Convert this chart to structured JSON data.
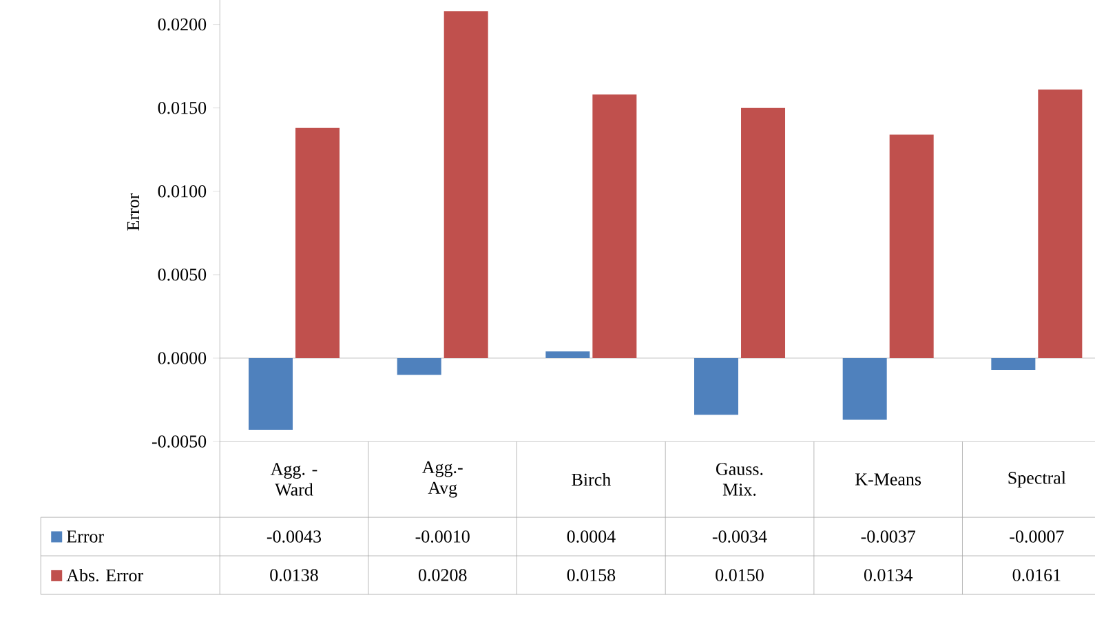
{
  "chart_data": {
    "type": "bar",
    "ylabel": "Error",
    "categories": [
      "Agg. -\nWard",
      "Agg.-\nAvg",
      "Birch",
      "Gauss.\nMix.",
      "K-Means",
      "Spectral"
    ],
    "series": [
      {
        "name": "Error",
        "color": "#4f81bd",
        "values": [
          -0.0043,
          -0.001,
          0.0004,
          -0.0034,
          -0.0037,
          -0.0007
        ],
        "value_labels": [
          "-0.0043",
          "-0.0010",
          "0.0004",
          "-0.0034",
          "-0.0037",
          "-0.0007"
        ]
      },
      {
        "name": "Abs. Error",
        "color": "#c0504d",
        "values": [
          0.0138,
          0.0208,
          0.0158,
          0.015,
          0.0134,
          0.0161
        ],
        "value_labels": [
          "0.0138",
          "0.0208",
          "0.0158",
          "0.0150",
          "0.0134",
          "0.0161"
        ]
      }
    ],
    "ylim": [
      -0.005,
      0.0225
    ],
    "yticks": [
      {
        "value": -0.005,
        "label": "-0.0050"
      },
      {
        "value": 0,
        "label": "0.0000"
      },
      {
        "value": 0.005,
        "label": "0.0050"
      },
      {
        "value": 0.01,
        "label": "0.0100"
      },
      {
        "value": 0.015,
        "label": "0.0150"
      },
      {
        "value": 0.02,
        "label": "0.0200"
      }
    ],
    "data_labels": true,
    "legend": "bottom"
  }
}
